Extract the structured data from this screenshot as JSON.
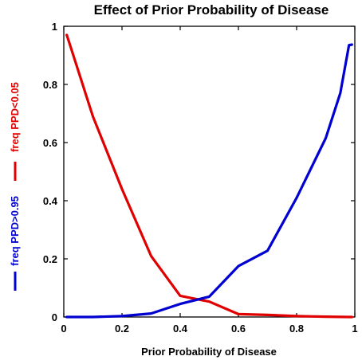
{
  "chart_data": {
    "type": "line",
    "title": "Effect of Prior Probability of Disease",
    "xlabel": "Prior Probability of Disease",
    "ylabel_red": "freq PPD<0.05",
    "ylabel_blue": "freq PPD>0.95",
    "xlim": [
      0,
      1
    ],
    "ylim": [
      0,
      1
    ],
    "x_ticks": [
      "0",
      "0.2",
      "0.4",
      "0.6",
      "0.8",
      "1"
    ],
    "y_ticks": [
      "0",
      "0.2",
      "0.4",
      "0.6",
      "0.8",
      "1"
    ],
    "grid": false,
    "series": [
      {
        "name": "freq PPD<0.05",
        "color": "#e00000",
        "x": [
          0.01,
          0.02,
          0.1,
          0.2,
          0.3,
          0.4,
          0.5,
          0.6,
          0.7,
          0.8,
          0.9,
          0.98,
          0.99
        ],
        "y": [
          0.97,
          0.94,
          0.69,
          0.44,
          0.21,
          0.073,
          0.053,
          0.01,
          0.007,
          0.003,
          0.001,
          0.0,
          0.0
        ]
      },
      {
        "name": "freq PPD>0.95",
        "color": "#0000d0",
        "x": [
          0.01,
          0.02,
          0.1,
          0.2,
          0.3,
          0.4,
          0.5,
          0.6,
          0.7,
          0.8,
          0.9,
          0.95,
          0.98,
          0.99
        ],
        "y": [
          0.0,
          0.0,
          0.0,
          0.003,
          0.012,
          0.045,
          0.07,
          0.175,
          0.228,
          0.41,
          0.615,
          0.77,
          0.935,
          0.937
        ]
      }
    ]
  }
}
